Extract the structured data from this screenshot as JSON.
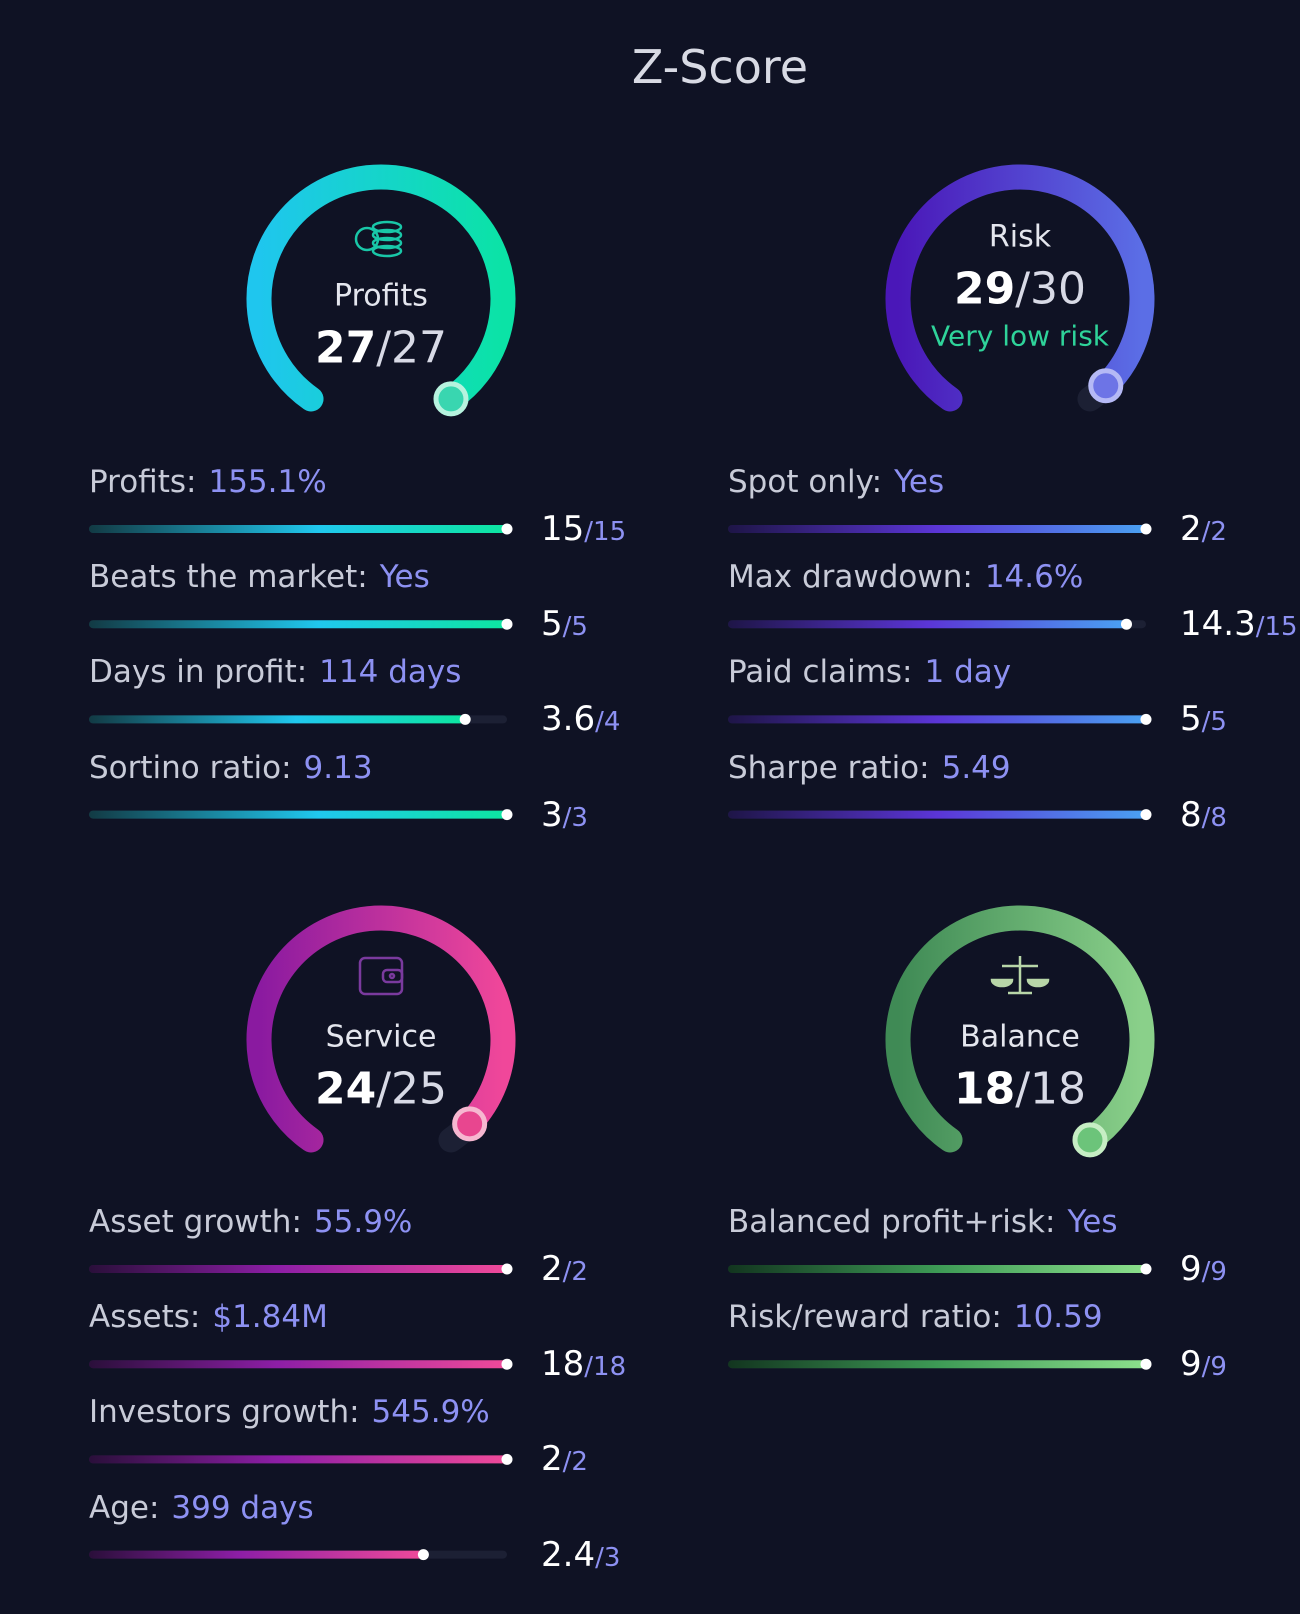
{
  "title": "Z-Score",
  "sections": [
    {
      "name": "Profits",
      "score": 27,
      "max": 27,
      "metrics": [
        {
          "label": "Profits:",
          "value": "155.1%",
          "score": 15,
          "max": 15
        },
        {
          "label": "Beats the market:",
          "value": "Yes",
          "score": 5,
          "max": 5
        },
        {
          "label": "Days in profit:",
          "value": "114 days",
          "score": 3.6,
          "max": 4
        },
        {
          "label": "Sortino ratio:",
          "value": "9.13",
          "score": 3,
          "max": 3
        }
      ]
    },
    {
      "name": "Risk",
      "score": 29,
      "max": 30,
      "status": "Very low risk",
      "metrics": [
        {
          "label": "Spot only:",
          "value": "Yes",
          "score": 2,
          "max": 2
        },
        {
          "label": "Max drawdown:",
          "value": "14.6%",
          "score": 14.3,
          "max": 15
        },
        {
          "label": "Paid claims:",
          "value": "1 day",
          "score": 5,
          "max": 5
        },
        {
          "label": "Sharpe ratio:",
          "value": "5.49",
          "score": 8,
          "max": 8
        }
      ]
    },
    {
      "name": "Service",
      "score": 24,
      "max": 25,
      "metrics": [
        {
          "label": "Asset growth:",
          "value": "55.9%",
          "score": 2,
          "max": 2
        },
        {
          "label": "Assets:",
          "value": "$1.84M",
          "score": 18,
          "max": 18
        },
        {
          "label": "Investors growth:",
          "value": "545.9%",
          "score": 2,
          "max": 2
        },
        {
          "label": "Age:",
          "value": "399 days",
          "score": 2.4,
          "max": 3
        }
      ]
    },
    {
      "name": "Balance",
      "score": 18,
      "max": 18,
      "metrics": [
        {
          "label": "Balanced profit+risk:",
          "value": "Yes",
          "score": 9,
          "max": 9
        },
        {
          "label": "Risk/reward ratio:",
          "value": "10.59",
          "score": 9,
          "max": 9
        }
      ]
    }
  ]
}
